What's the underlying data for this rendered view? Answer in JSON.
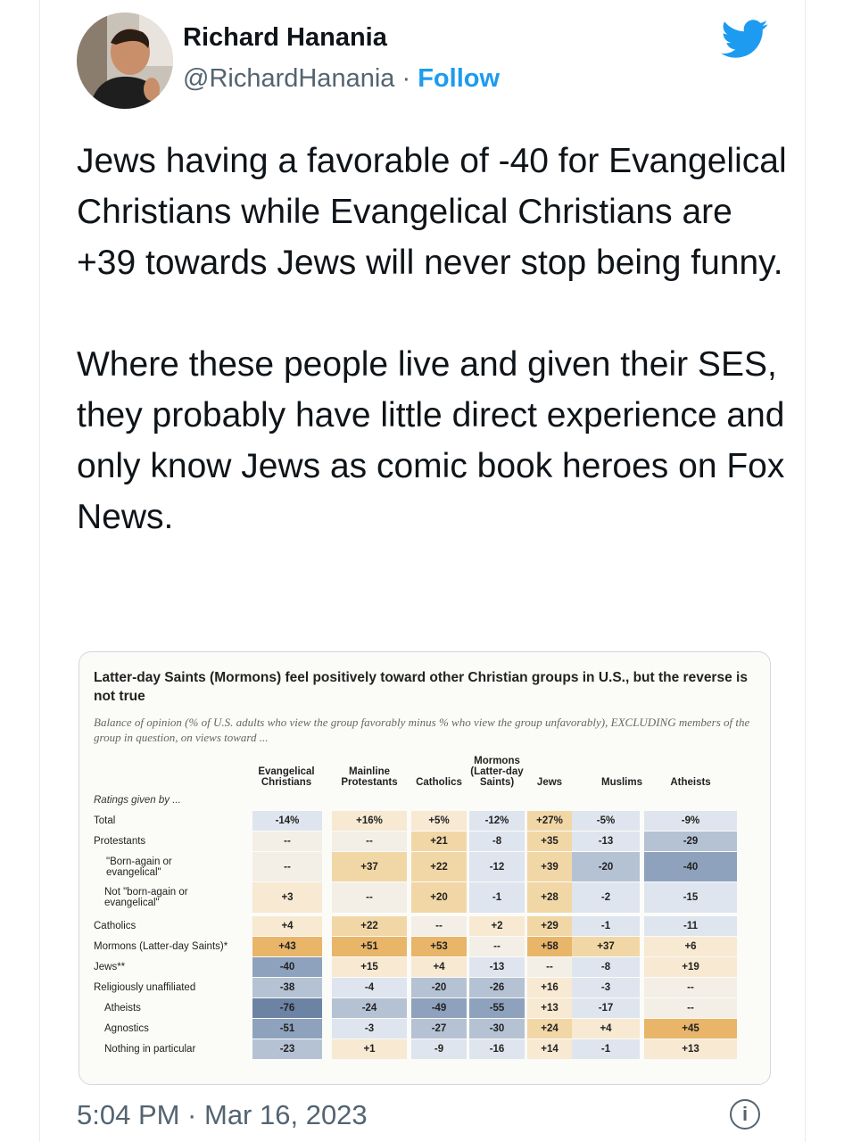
{
  "author": {
    "name": "Richard Hanania",
    "handle": "@RichardHanania",
    "separator": "·",
    "follow_label": "Follow"
  },
  "icons": {
    "platform": "twitter-bird-icon",
    "info": "info-icon",
    "brand_color": "#1d9bf0"
  },
  "tweet": {
    "paragraph1": "Jews having a favorable of -40 for Evangelical Christians while Evangelical Christians are +39 towards Jews will never stop being funny.",
    "paragraph2": "Where these people live and given their SES, they probably have little direct experience and only know Jews as comic book heroes on Fox News."
  },
  "timestamp": "5:04 PM · Mar 16, 2023",
  "figure": {
    "title": "Latter-day Saints (Mormons) feel positively toward other Christian groups in U.S., but the reverse is not true",
    "subtitle": "Balance of opinion (% of U.S. adults who view the group favorably minus % who view the group unfavorably), EXCLUDING members of the group in question, on views toward ...",
    "ratings_label": "Ratings given by ...",
    "columns": [
      [
        "Evangelical",
        "Christians"
      ],
      [
        "Mainline",
        "Protestants"
      ],
      [
        "Catholics"
      ],
      [
        "Mormons",
        "(Latter-day",
        "Saints)"
      ],
      [
        "Jews"
      ],
      [
        "Muslims"
      ],
      [
        "Atheists"
      ]
    ],
    "rows": [
      {
        "label": [
          "Total"
        ],
        "values": [
          "-14%",
          "+16%",
          "+5%",
          "-12%",
          "+27%",
          "-5%",
          "-9%"
        ]
      },
      {
        "label": [
          "Protestants"
        ],
        "values": [
          "--",
          "--",
          "+21",
          "-8",
          "+35",
          "-13",
          "-29"
        ]
      },
      {
        "label": [
          "\"Born-again or",
          "evangelical\""
        ],
        "values": [
          "--",
          "+37",
          "+22",
          "-12",
          "+39",
          "-20",
          "-40"
        ]
      },
      {
        "label": [
          "Not \"born-again or",
          "evangelical\""
        ],
        "values": [
          "+3",
          "--",
          "+20",
          "-1",
          "+28",
          "-2",
          "-15"
        ]
      },
      {
        "label": [
          "Catholics"
        ],
        "values": [
          "+4",
          "+22",
          "--",
          "+2",
          "+29",
          "-1",
          "-11"
        ]
      },
      {
        "label": [
          "Mormons (Latter-day Saints)*"
        ],
        "values": [
          "+43",
          "+51",
          "+53",
          "--",
          "+58",
          "+37",
          "+6"
        ]
      },
      {
        "label": [
          "Jews**"
        ],
        "values": [
          "-40",
          "+15",
          "+4",
          "-13",
          "--",
          "-8",
          "+19"
        ]
      },
      {
        "label": [
          "Religiously unaffiliated"
        ],
        "values": [
          "-38",
          "-4",
          "-20",
          "-26",
          "+16",
          "-3",
          "--"
        ]
      },
      {
        "label": [
          "Atheists"
        ],
        "values": [
          "-76",
          "-24",
          "-49",
          "-55",
          "+13",
          "-17",
          "--"
        ]
      },
      {
        "label": [
          "Agnostics"
        ],
        "values": [
          "-51",
          "-3",
          "-27",
          "-30",
          "+24",
          "+4",
          "+45"
        ]
      },
      {
        "label": [
          "Nothing in particular"
        ],
        "values": [
          "-23",
          "+1",
          "-9",
          "-16",
          "+14",
          "-1",
          "+13"
        ]
      }
    ]
  }
}
